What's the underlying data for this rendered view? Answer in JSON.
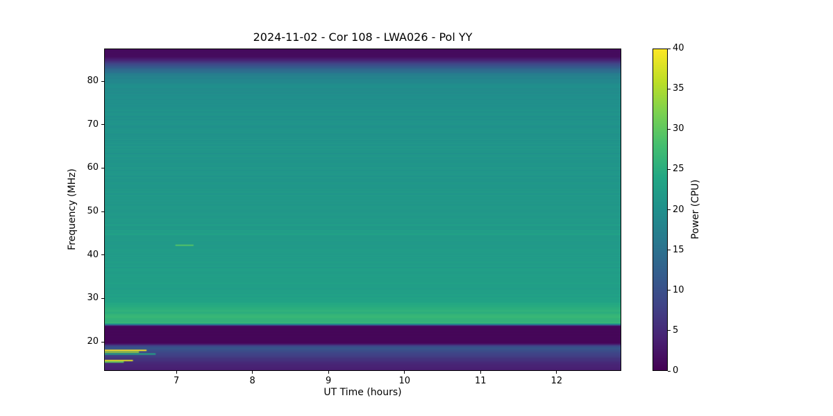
{
  "figure": {
    "background": "#ffffff"
  },
  "chart_data": {
    "type": "heatmap",
    "title": "2024-11-02 - Cor 108 - LWA026 - Pol YY",
    "xlabel": "UT Time (hours)",
    "ylabel": "Frequency (MHz)",
    "x_range": [
      6.05,
      12.85
    ],
    "y_range": [
      13.3,
      87.5
    ],
    "x_ticks": [
      7,
      8,
      9,
      10,
      11,
      12
    ],
    "y_ticks": [
      20,
      30,
      40,
      50,
      60,
      70,
      80
    ],
    "colorbar": {
      "label": "Power (CPU)",
      "range": [
        0,
        40
      ],
      "ticks": [
        0,
        5,
        10,
        15,
        20,
        25,
        30,
        35,
        40
      ],
      "colormap": "viridis"
    },
    "spectrum_profile": [
      [
        87.5,
        1.2
      ],
      [
        85.8,
        1.2
      ],
      [
        85.0,
        4.0
      ],
      [
        84.0,
        9.0
      ],
      [
        83.0,
        13.0
      ],
      [
        81.5,
        17.0
      ],
      [
        79.5,
        19.5
      ],
      [
        75.0,
        20.3
      ],
      [
        70.0,
        20.5
      ],
      [
        65.0,
        20.8
      ],
      [
        60.0,
        21.0
      ],
      [
        55.0,
        21.3
      ],
      [
        50.0,
        21.5
      ],
      [
        45.5,
        21.8
      ],
      [
        44.8,
        23.2
      ],
      [
        44.3,
        21.8
      ],
      [
        40.0,
        22.0
      ],
      [
        35.0,
        22.2
      ],
      [
        31.0,
        22.6
      ],
      [
        29.0,
        23.5
      ],
      [
        27.5,
        25.2
      ],
      [
        26.0,
        26.2
      ],
      [
        24.2,
        26.5
      ],
      [
        23.8,
        14.0
      ],
      [
        23.5,
        0.6
      ],
      [
        19.6,
        0.6
      ],
      [
        19.2,
        4.0
      ],
      [
        18.9,
        9.0
      ],
      [
        18.4,
        11.0
      ],
      [
        17.9,
        9.8
      ],
      [
        17.3,
        8.5
      ],
      [
        16.5,
        7.0
      ],
      [
        15.8,
        6.0
      ],
      [
        15.2,
        5.0
      ],
      [
        14.5,
        4.2
      ],
      [
        13.3,
        3.4
      ]
    ],
    "features": [
      {
        "name": "rfi-line",
        "freq": 17.9,
        "t_start": 6.05,
        "t_end": 6.6,
        "power": 40
      },
      {
        "name": "rfi-line",
        "freq": 17.5,
        "t_start": 6.05,
        "t_end": 6.5,
        "power": 34
      },
      {
        "name": "rfi-line",
        "freq": 17.05,
        "t_start": 6.05,
        "t_end": 6.72,
        "power": 24
      },
      {
        "name": "rfi-line",
        "freq": 15.55,
        "t_start": 6.05,
        "t_end": 6.42,
        "power": 38
      },
      {
        "name": "rfi-line",
        "freq": 15.2,
        "t_start": 6.05,
        "t_end": 6.3,
        "power": 30
      },
      {
        "name": "burst",
        "freq": 42.2,
        "t_start": 6.98,
        "t_end": 7.22,
        "power": 29
      }
    ]
  }
}
